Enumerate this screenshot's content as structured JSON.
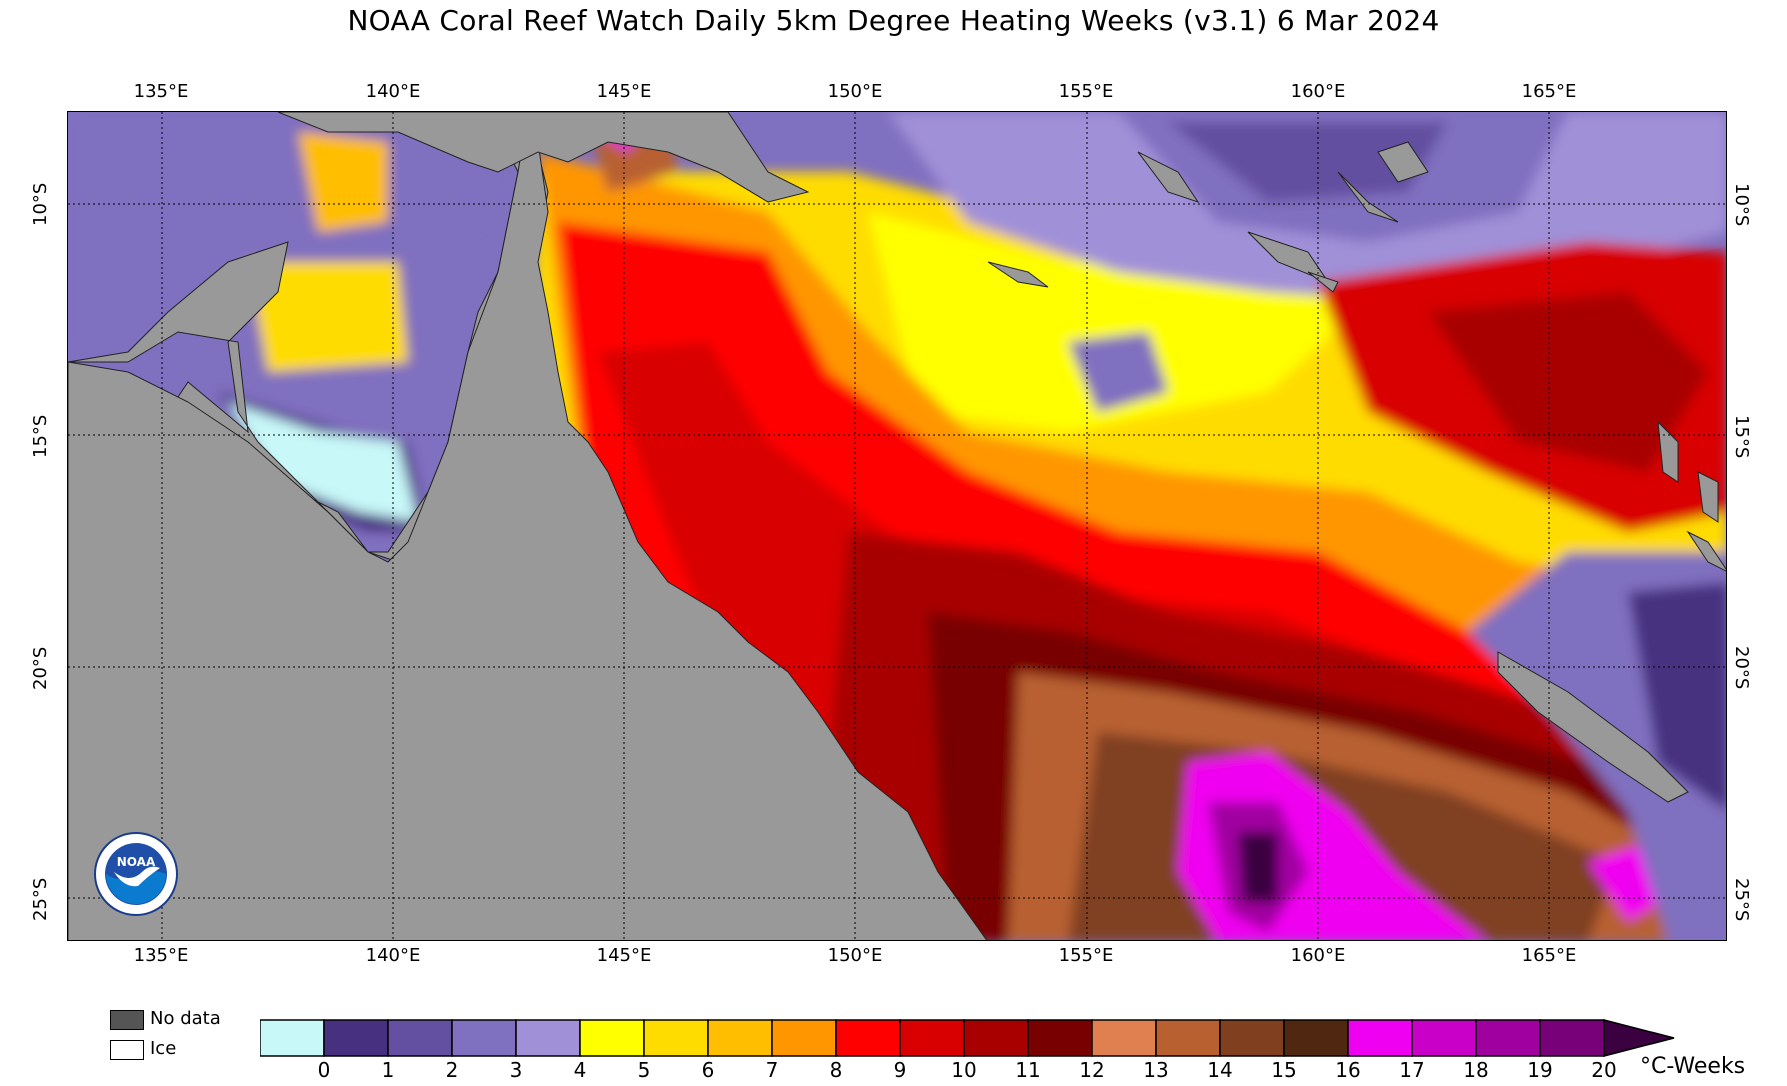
{
  "title": "NOAA Coral Reef Watch Daily 5km Degree Heating Weeks  (v3.1)   6 Mar 2024",
  "map": {
    "lon_labels": [
      "135°E",
      "140°E",
      "145°E",
      "150°E",
      "155°E",
      "160°E",
      "165°E"
    ],
    "lat_labels": [
      "10°S",
      "15°S",
      "20°S",
      "25°S"
    ],
    "colors": {
      "land": "#999999",
      "no_data": "#555555",
      "ice": "#ffffff",
      "scale": [
        "#c8f8f8",
        "#473080",
        "#6450a0",
        "#8070c0",
        "#a090d8",
        "#ffff00",
        "#ffdc00",
        "#ffbe00",
        "#ff9600",
        "#ff0000",
        "#d80000",
        "#a80000",
        "#780000",
        "#e08050",
        "#b86030",
        "#804020",
        "#502812",
        "#f000f0",
        "#c800c8",
        "#a000a0",
        "#780078",
        "#3a0040"
      ]
    },
    "logo_icon": "noaa-logo-icon"
  },
  "legend": {
    "no_data_label": "No data",
    "ice_label": "Ice",
    "ticks": [
      "0",
      "1",
      "2",
      "3",
      "4",
      "5",
      "6",
      "7",
      "8",
      "9",
      "10",
      "11",
      "12",
      "13",
      "14",
      "15",
      "16",
      "17",
      "18",
      "19",
      "20"
    ],
    "units": "°C-Weeks"
  }
}
